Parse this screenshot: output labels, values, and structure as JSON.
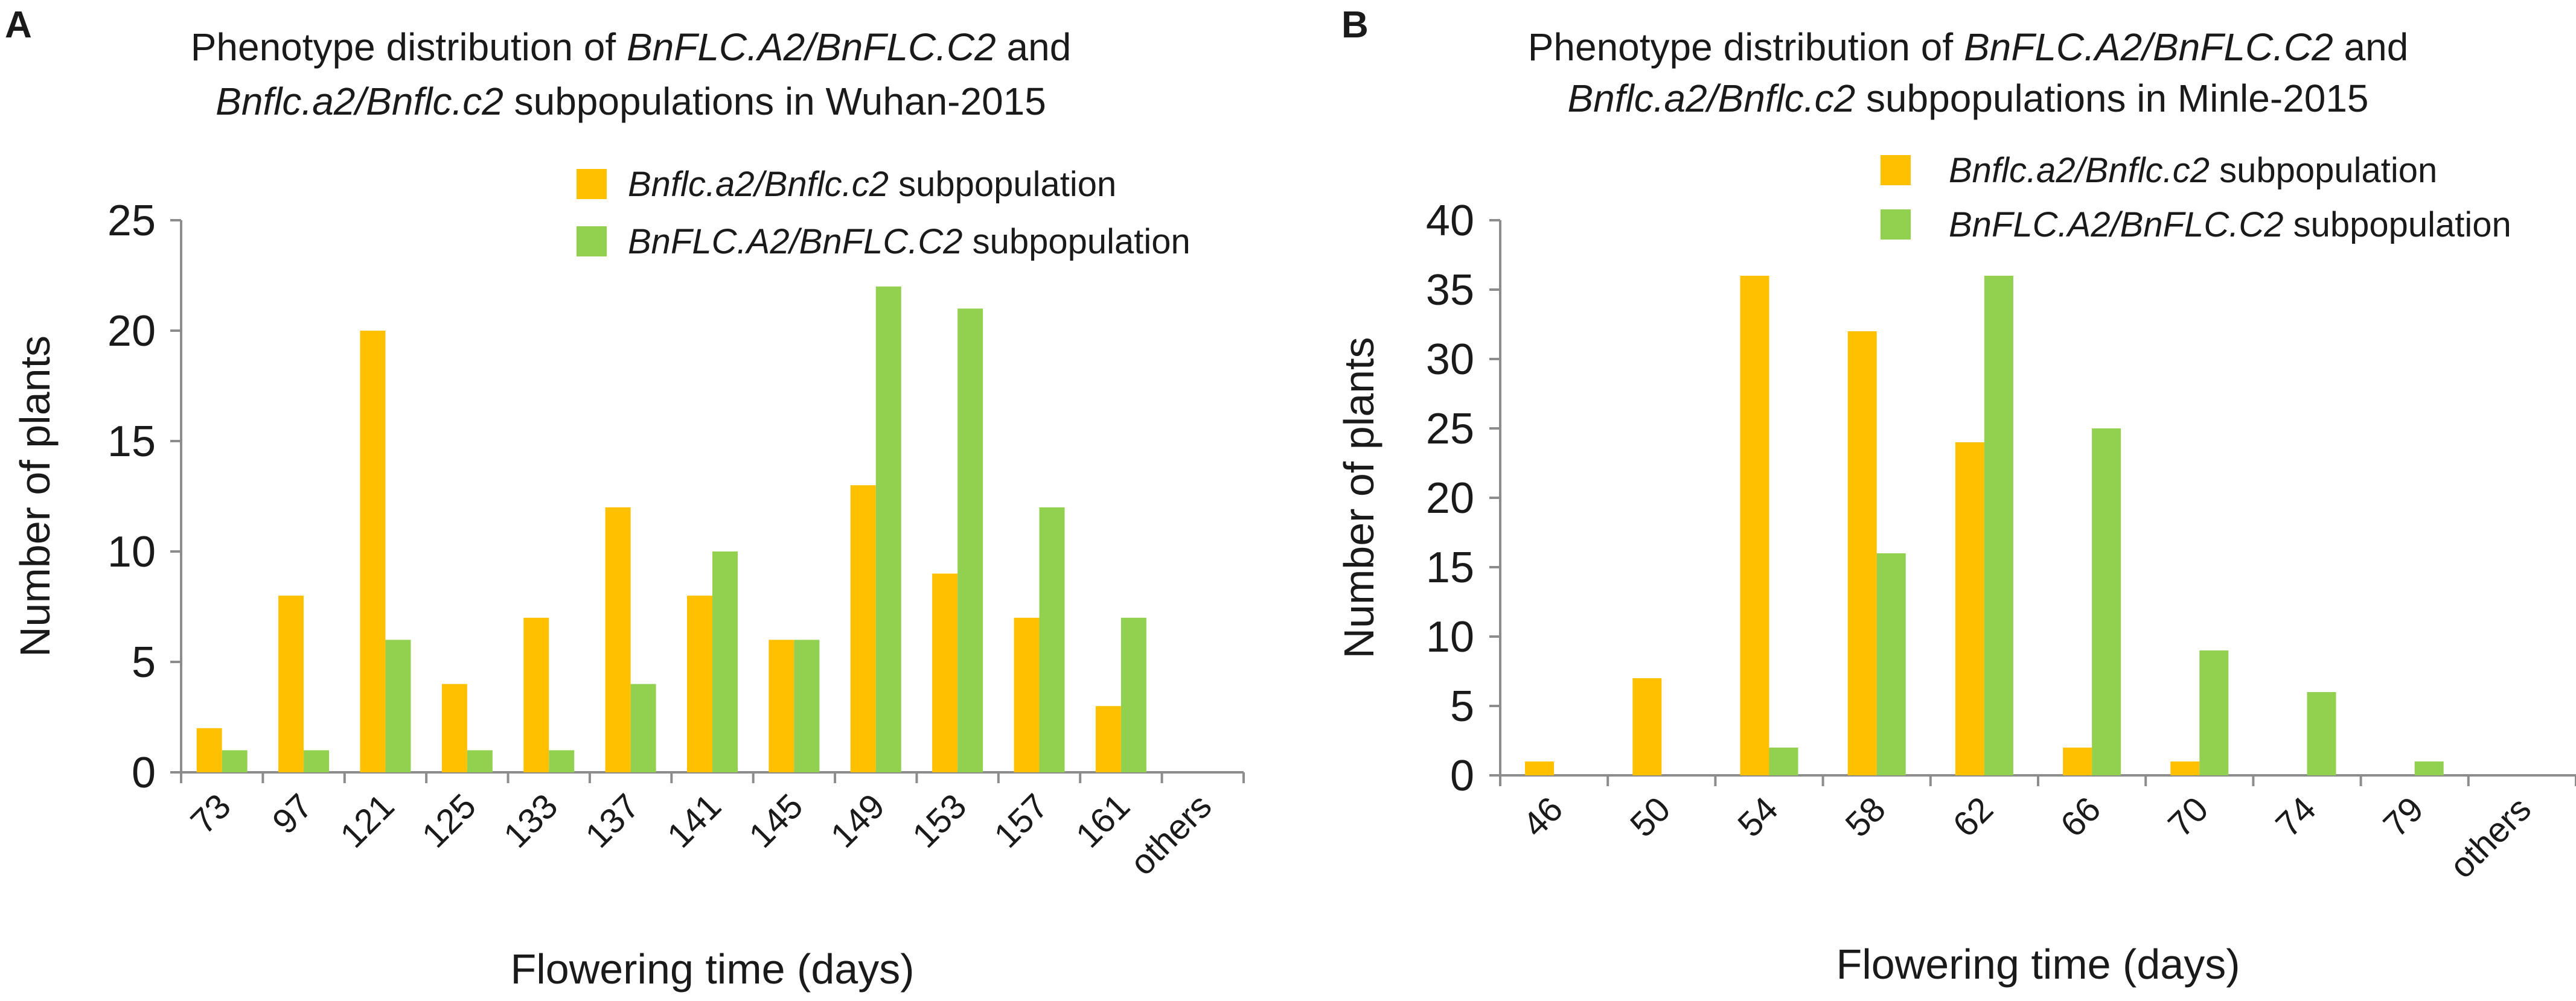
{
  "chart_data": [
    {
      "panel": "A",
      "type": "bar",
      "title_lines": [
        [
          {
            "text": "Phenotype distribution of  ",
            "italic": false
          },
          {
            "text": "BnFLC.A2/BnFLC.C2",
            "italic": true
          },
          {
            "text": " and",
            "italic": false
          }
        ],
        [
          {
            "text": "Bnflc.a2/Bnflc.c2",
            "italic": true
          },
          {
            "text": " subpopulations in Wuhan-2015",
            "italic": false
          }
        ]
      ],
      "xlabel": "Flowering time (days)",
      "ylabel": "Number of plants",
      "ylim": [
        0,
        25
      ],
      "yticks": [
        "0",
        "5",
        "10",
        "15",
        "20",
        "25"
      ],
      "categories": [
        "73",
        "97",
        "121",
        "125",
        "133",
        "137",
        "141",
        "145",
        "149",
        "153",
        "157",
        "161",
        "others"
      ],
      "series": [
        {
          "name": "Bnflc.a2/Bnflc.c2",
          "legend_suffix": " subpopulation",
          "color": "#FFC000",
          "values": [
            2,
            8,
            20,
            4,
            7,
            12,
            8,
            6,
            13,
            9,
            7,
            3,
            0
          ]
        },
        {
          "name": "BnFLC.A2/BnFLC.C2",
          "legend_suffix": " subpopulation",
          "color": "#92D050",
          "values": [
            1,
            1,
            6,
            1,
            1,
            4,
            10,
            6,
            22,
            21,
            12,
            7,
            0
          ]
        }
      ],
      "legend_position": "top-right"
    },
    {
      "panel": "B",
      "type": "bar",
      "title_lines": [
        [
          {
            "text": "Phenotype distribution of  ",
            "italic": false
          },
          {
            "text": "BnFLC.A2/BnFLC.C2",
            "italic": true
          },
          {
            "text": " and",
            "italic": false
          }
        ],
        [
          {
            "text": "Bnflc.a2/Bnflc.c2",
            "italic": true
          },
          {
            "text": " subpopulations in Minle-2015",
            "italic": false
          }
        ]
      ],
      "xlabel": "Flowering time (days)",
      "ylabel": "Number of plants",
      "ylim": [
        0,
        40
      ],
      "yticks": [
        "0",
        "5",
        "10",
        "15",
        "20",
        "25",
        "30",
        "35",
        "40"
      ],
      "categories": [
        "46",
        "50",
        "54",
        "58",
        "62",
        "66",
        "70",
        "74",
        "79",
        "others"
      ],
      "series": [
        {
          "name": "Bnflc.a2/Bnflc.c2",
          "legend_suffix": " subpopulation",
          "color": "#FFC000",
          "values": [
            1,
            7,
            36,
            32,
            24,
            2,
            1,
            0,
            0,
            0
          ]
        },
        {
          "name": "BnFLC.A2/BnFLC.C2",
          "legend_suffix": " subpopulation",
          "color": "#92D050",
          "values": [
            0,
            0,
            2,
            16,
            36,
            25,
            9,
            6,
            1,
            0
          ]
        }
      ],
      "legend_position": "top-right"
    }
  ]
}
